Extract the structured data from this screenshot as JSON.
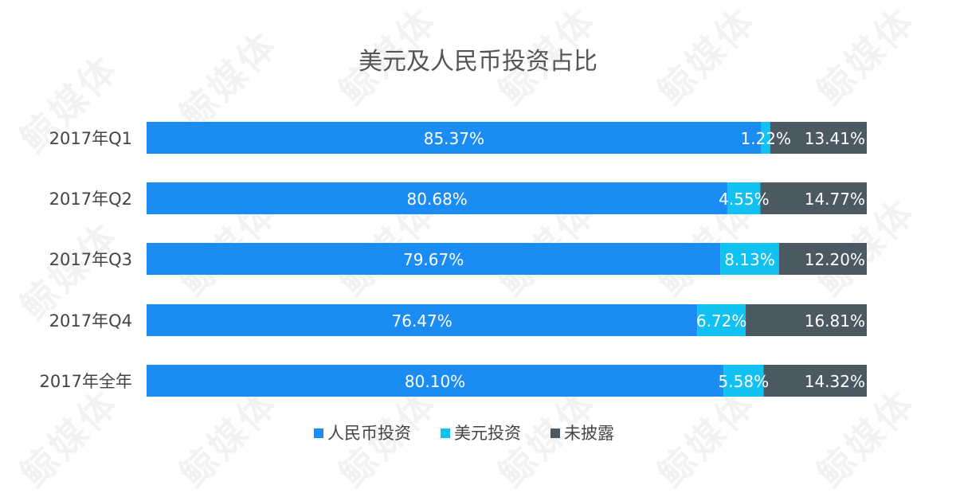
{
  "watermark": "鲸媒体",
  "chart_data": {
    "type": "bar",
    "orientation": "horizontal",
    "stacked": true,
    "normalized_percent": true,
    "title": "美元及人民币投资占比",
    "categories": [
      "2017年Q1",
      "2017年Q2",
      "2017年Q3",
      "2017年Q4",
      "2017年全年"
    ],
    "series": [
      {
        "name": "人民币投资",
        "color": "#1a8cf4",
        "values": [
          85.37,
          80.68,
          79.67,
          76.47,
          80.1
        ],
        "labels": [
          "85.37%",
          "80.68%",
          "79.67%",
          "76.47%",
          "80.10%"
        ]
      },
      {
        "name": "美元投资",
        "color": "#11c1f2",
        "values": [
          1.22,
          4.55,
          8.13,
          6.72,
          5.58
        ],
        "labels": [
          "1.22%",
          "4.55%",
          "8.13%",
          "6.72%",
          "5.58%"
        ]
      },
      {
        "name": "未披露",
        "color": "#4b5963",
        "values": [
          13.41,
          14.77,
          12.2,
          16.81,
          14.32
        ],
        "labels": [
          "13.41%",
          "14.77%",
          "12.20%",
          "16.81%",
          "14.32%"
        ]
      }
    ],
    "xlim": [
      0,
      100
    ],
    "grid": false,
    "legend_position": "bottom"
  }
}
